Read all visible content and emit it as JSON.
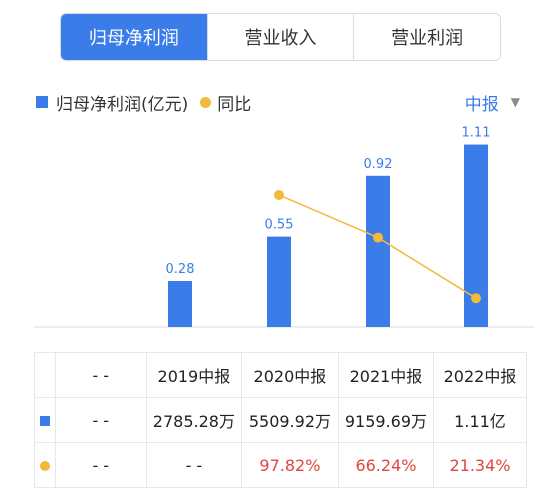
{
  "tabs": [
    {
      "label": "归母净利润",
      "active": true
    },
    {
      "label": "营业收入",
      "active": false
    },
    {
      "label": "营业利润",
      "active": false
    }
  ],
  "legend": {
    "bar_label": "归母净利润(亿元)",
    "line_label": "同比"
  },
  "period_selector": {
    "label": "中报"
  },
  "colors": {
    "accent": "#3a7de8",
    "line": "#f2b93b",
    "positive": "#e0463f"
  },
  "chart_data": {
    "type": "bar",
    "categories": [
      "--",
      "2019中报",
      "2020中报",
      "2021中报",
      "2022中报"
    ],
    "series": [
      {
        "name": "归母净利润(亿元)",
        "type": "bar",
        "values": [
          null,
          0.28,
          0.55,
          0.92,
          1.11
        ],
        "labels": [
          "",
          "0.28",
          "0.55",
          "0.92",
          "1.11"
        ]
      },
      {
        "name": "同比",
        "type": "line",
        "values": [
          null,
          null,
          97.82,
          66.24,
          21.34
        ]
      }
    ],
    "ylim": [
      0,
      1.15
    ],
    "line_ylim": [
      0,
      140
    ],
    "grid": false
  },
  "table": {
    "header": [
      "",
      "- -",
      "2019中报",
      "2020中报",
      "2021中报",
      "2022中报"
    ],
    "rows": [
      {
        "marker": "bar",
        "cells": [
          "- -",
          "2785.28万",
          "5509.92万",
          "9159.69万",
          "1.11亿"
        ]
      },
      {
        "marker": "line",
        "cells": [
          "- -",
          "- -",
          "97.82%",
          "66.24%",
          "21.34%"
        ]
      }
    ]
  }
}
